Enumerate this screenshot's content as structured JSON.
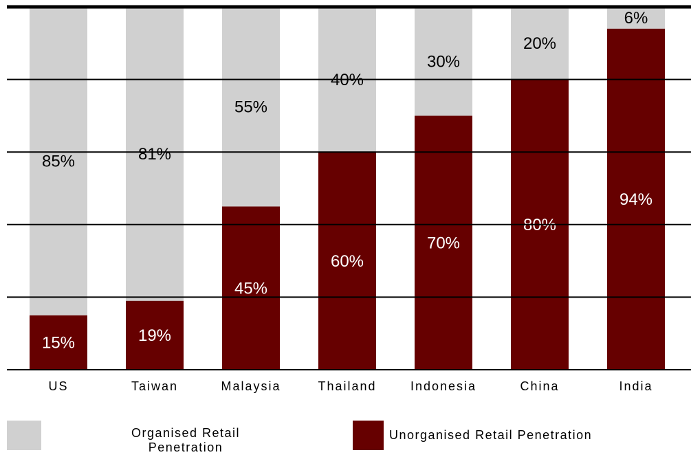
{
  "chart_data": {
    "type": "stacked_bar",
    "categories": [
      "US",
      "Taiwan",
      "Malaysia",
      "Thailand",
      "Indonesia",
      "China",
      "India"
    ],
    "series": [
      {
        "name": "Organised Retail Penetration",
        "color": "#d0d0d0",
        "label_color": "#000000",
        "values": [
          85,
          81,
          55,
          40,
          30,
          20,
          6
        ],
        "value_labels": [
          "85%",
          "81%",
          "55%",
          "40%",
          "30%",
          "20%",
          "6%"
        ]
      },
      {
        "name": "Unorganised Retail Penetration",
        "color": "#660000",
        "label_color": "#ffffff",
        "values": [
          15,
          19,
          45,
          60,
          70,
          80,
          94
        ],
        "value_labels": [
          "15%",
          "19%",
          "45%",
          "60%",
          "70%",
          "80%",
          "94%"
        ]
      }
    ],
    "ylim": [
      0,
      100
    ],
    "yticks": [
      0,
      20,
      40,
      60,
      80,
      100
    ],
    "grid": true
  }
}
